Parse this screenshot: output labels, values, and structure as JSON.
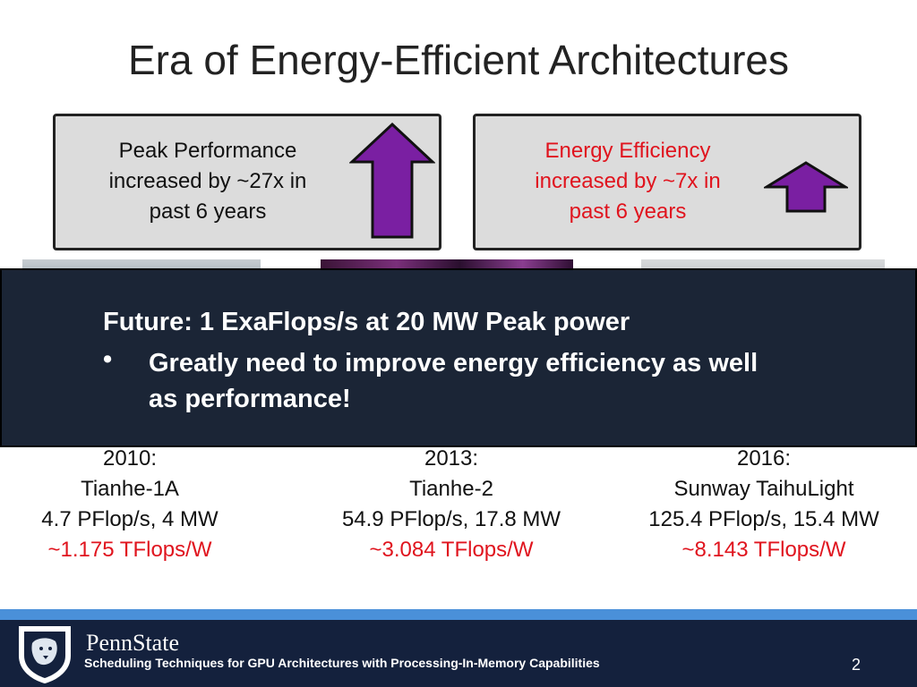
{
  "slide": {
    "title": "Era of Energy-Efficient Architectures",
    "page_number": "2"
  },
  "boxes": [
    {
      "lines": [
        "Peak Performance",
        "increased by ~27x in",
        "past 6 years"
      ],
      "arrow_icon": "up-arrow-icon-large"
    },
    {
      "lines": [
        "Energy Efficiency",
        "increased by ~7x in",
        "past 6 years"
      ],
      "text_color": "#e0141e",
      "arrow_icon": "up-arrow-icon-small"
    }
  ],
  "arrow_color": "#7a1fa2",
  "banner": {
    "heading": "Future: 1 ExaFlops/s at 20 MW Peak power",
    "bullet_symbol": "•",
    "bullet": "Greatly need to improve energy efficiency as well as performance!"
  },
  "systems": [
    {
      "year": "2010:",
      "name": "Tianhe-1A",
      "spec": "4.7 PFlop/s, 4 MW",
      "efficiency": "~1.175 TFlops/W"
    },
    {
      "year": "2013:",
      "name": "Tianhe-2",
      "spec": "54.9 PFlop/s, 17.8 MW",
      "efficiency": "~3.084 TFlops/W"
    },
    {
      "year": "2016:",
      "name": "Sunway TaihuLight",
      "spec": "125.4 PFlop/s, 15.4 MW",
      "efficiency": "~8.143 TFlops/W"
    }
  ],
  "footer": {
    "brand": "PennState",
    "subtitle": "Scheduling Techniques for GPU Architectures with Processing-In-Memory Capabilities",
    "logo_icon": "nittany-lion-shield-icon"
  }
}
